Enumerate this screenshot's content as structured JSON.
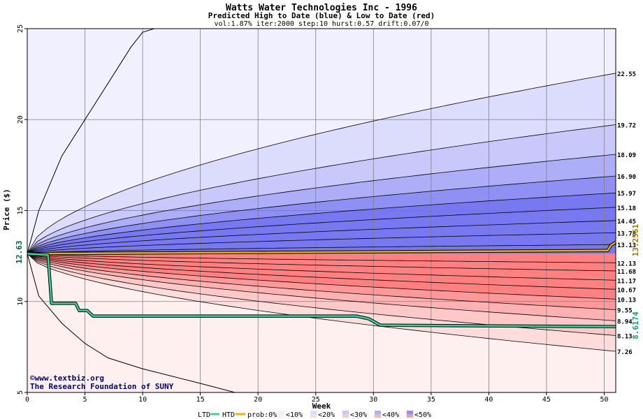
{
  "title": "Watts Water Technologies Inc - 1996",
  "subtitle": "Predicted High to Date (blue) &  Low to Date (red)",
  "params": "vol:1.87% iter:2000 step:10 hurst:0.57 drift:0.07/0",
  "xlabel": "Week",
  "ylabel": "Price ($)",
  "start_label": "12.63",
  "htd_end_label": "13.2561",
  "ltd_end_label": "8.6174",
  "credit_line1": "©www.textbiz.org",
  "credit_line2": "The Research Foundation of SUNY",
  "legend": {
    "ltd": "LTD",
    "htd": "HTD",
    "prob": "prob:0%",
    "bins": [
      "<10%",
      "<20%",
      "<30%",
      "<40%",
      "<50%"
    ]
  },
  "colors": {
    "htd": "#e8b000",
    "ltd": "#30d8a0",
    "blue_bands": [
      "#f0f0ff",
      "#dcdcfc",
      "#c8c8fa",
      "#aeaef8",
      "#9090f4",
      "#7878f0"
    ],
    "red_bands": [
      "#fff0f0",
      "#ffdcdc",
      "#ffc8c8",
      "#ffb0b0",
      "#ff9898",
      "#ff8080"
    ]
  },
  "chart_data": {
    "type": "area",
    "xlim": [
      0,
      51
    ],
    "ylim": [
      5,
      25
    ],
    "x_ticks": [
      0,
      5,
      10,
      15,
      20,
      25,
      30,
      35,
      40,
      45,
      50
    ],
    "y_ticks": [
      5,
      10,
      15,
      20,
      25
    ],
    "start_price": 12.63,
    "upper_levels": [
      22.55,
      19.72,
      18.09,
      16.9,
      15.97,
      15.18,
      14.45,
      13.78,
      13.13
    ],
    "upper_labels": [
      "22.55",
      "19.72",
      "18.09",
      "16.90",
      "15.97",
      "15.18",
      "14.45",
      "13.78",
      "13.13"
    ],
    "lower_levels": [
      12.13,
      11.68,
      11.17,
      10.67,
      10.13,
      9.55,
      8.94,
      8.13,
      7.26
    ],
    "lower_labels": [
      "12.13",
      "11.68",
      "11.17",
      "10.67",
      "10.13",
      "9.55",
      "8.94",
      "8.13",
      "7.26"
    ],
    "outer_high": [
      [
        0,
        12.63
      ],
      [
        1,
        15.0
      ],
      [
        3,
        18.0
      ],
      [
        5,
        20.0
      ],
      [
        7,
        22.0
      ],
      [
        9,
        24.0
      ],
      [
        10,
        24.8
      ],
      [
        11,
        25.0
      ]
    ],
    "outer_low": [
      [
        0,
        12.63
      ],
      [
        1,
        10.3
      ],
      [
        3,
        8.8
      ],
      [
        5,
        7.7
      ],
      [
        7,
        6.9
      ],
      [
        10,
        6.3
      ],
      [
        15,
        5.5
      ],
      [
        18,
        5.0
      ]
    ],
    "htd": [
      [
        0,
        12.63
      ],
      [
        50,
        12.8
      ],
      [
        50.3,
        12.8
      ],
      [
        50.6,
        13.1
      ],
      [
        51,
        13.2561
      ]
    ],
    "ltd": [
      [
        0,
        12.63
      ],
      [
        1.8,
        12.55
      ],
      [
        2.1,
        9.9
      ],
      [
        4.2,
        9.9
      ],
      [
        4.5,
        9.5
      ],
      [
        5.2,
        9.5
      ],
      [
        5.7,
        9.2
      ],
      [
        28.5,
        9.2
      ],
      [
        29.6,
        9.05
      ],
      [
        30.3,
        8.8
      ],
      [
        30.6,
        8.7
      ],
      [
        51,
        8.6174
      ]
    ]
  }
}
